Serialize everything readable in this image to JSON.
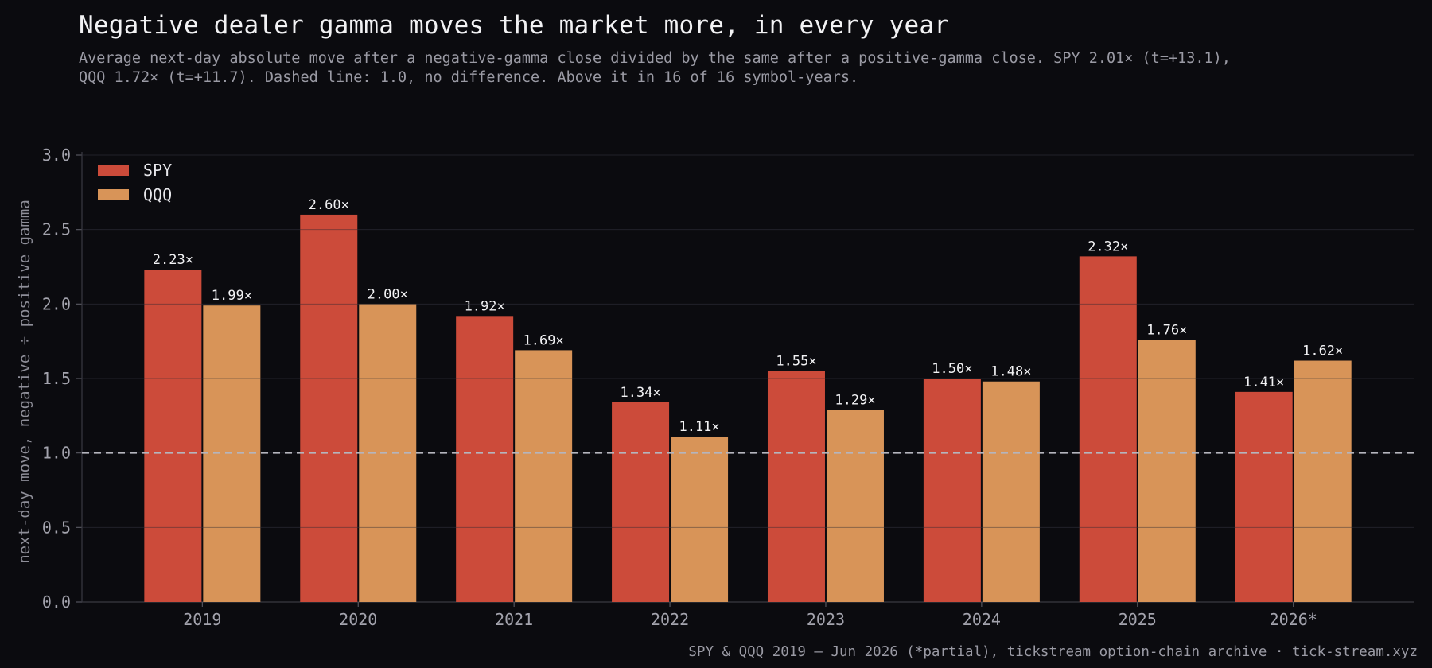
{
  "chart_data": {
    "type": "bar",
    "title": "Negative dealer gamma moves the market more, in every year",
    "subtitle_lines": [
      "Average next-day absolute move after a negative-gamma close divided by the same after a positive-gamma close. SPY 2.01× (t=+13.1),",
      "QQQ 1.72× (t=+11.7). Dashed line: 1.0, no difference. Above it in 16 of 16 symbol-years."
    ],
    "categories": [
      "2019",
      "2020",
      "2021",
      "2022",
      "2023",
      "2024",
      "2025",
      "2026*"
    ],
    "series": [
      {
        "name": "SPY",
        "color": "#cc4b3a",
        "values": [
          2.23,
          2.6,
          1.92,
          1.34,
          1.55,
          1.5,
          2.32,
          1.41
        ],
        "labels": [
          "2.23×",
          "2.60×",
          "1.92×",
          "1.34×",
          "1.55×",
          "1.50×",
          "2.32×",
          "1.41×"
        ]
      },
      {
        "name": "QQQ",
        "color": "#d89458",
        "values": [
          1.99,
          2.0,
          1.69,
          1.11,
          1.29,
          1.48,
          1.76,
          1.62
        ],
        "labels": [
          "1.99×",
          "2.00×",
          "1.69×",
          "1.11×",
          "1.29×",
          "1.48×",
          "1.76×",
          "1.62×"
        ]
      }
    ],
    "xlabel": "",
    "ylabel": "next-day move, negative ÷ positive gamma",
    "ylim": [
      0,
      3.0
    ],
    "yticks": [
      "0.0",
      "0.5",
      "1.0",
      "1.5",
      "2.0",
      "2.5",
      "3.0"
    ],
    "reference_line": 1.0,
    "grid": true,
    "legend": "top-left",
    "source": "SPY & QQQ 2019 – Jun 2026 (*partial), tickstream option-chain archive · tick-stream.xyz"
  }
}
